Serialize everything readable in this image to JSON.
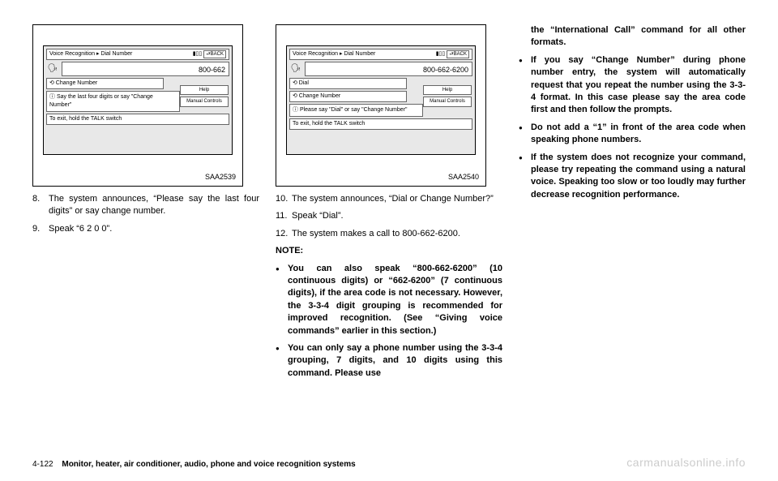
{
  "screen1": {
    "title": "Voice Recognition ▸ Dial Number",
    "back": "⮐BACK",
    "number": "800-662",
    "option1": "⟲ Change Number",
    "help": "Help",
    "manual": "Manual Controls",
    "hint": "ⓘ Say the last four digits or say \"Change Number\"",
    "exit": "To exit, hold the TALK switch",
    "label": "SAA2539"
  },
  "screen2": {
    "title": "Voice Recognition ▸ Dial Number",
    "back": "⮐BACK",
    "number": "800-662-6200",
    "option0": "⟲ Dial",
    "option1": "⟲ Change Number",
    "help": "Help",
    "manual": "Manual Controls",
    "hint": "ⓘ Please say \"Dial\" or say \"Change Number\"",
    "exit": "To exit, hold the TALK switch",
    "label": "SAA2540"
  },
  "col1": {
    "item8_num": "8.",
    "item8": "The system announces, “Please say the last four digits” or say change number.",
    "item9_num": "9.",
    "item9": "Speak “6 2 0 0”."
  },
  "col2": {
    "item10_num": "10.",
    "item10": "The system announces, “Dial or Change Number?”",
    "item11_num": "11.",
    "item11": "Speak “Dial”.",
    "item12_num": "12.",
    "item12": "The system makes a call to 800-662-6200.",
    "note": "NOTE:",
    "b1": "You can also speak “800-662-6200” (10 continuous digits) or “662-6200” (7 continuous digits), if the area code is not necessary. However, the 3-3-4 digit grouping is recommended for improved recognition. (See “Giving voice commands” earlier in this section.)",
    "b2": "You can only say a phone number using the 3-3-4 grouping, 7 digits, and 10 digits using this command. Please use"
  },
  "col3": {
    "cont": "the “International Call” command for all other formats.",
    "b3": "If you say “Change Number” during phone number entry, the system will automatically request that you repeat the number using the 3-3-4 format. In this case please say the area code first and then follow the prompts.",
    "b4": "Do not add a “1” in front of the area code when speaking phone numbers.",
    "b5": "If the system does not recognize your command, please try repeating the command using a natural voice. Speaking too slow or too loudly may further decrease recognition performance."
  },
  "footer": {
    "page": "4-122",
    "title": "Monitor, heater, air conditioner, audio, phone and voice recognition systems"
  },
  "watermark": "carmanualsonline.info"
}
